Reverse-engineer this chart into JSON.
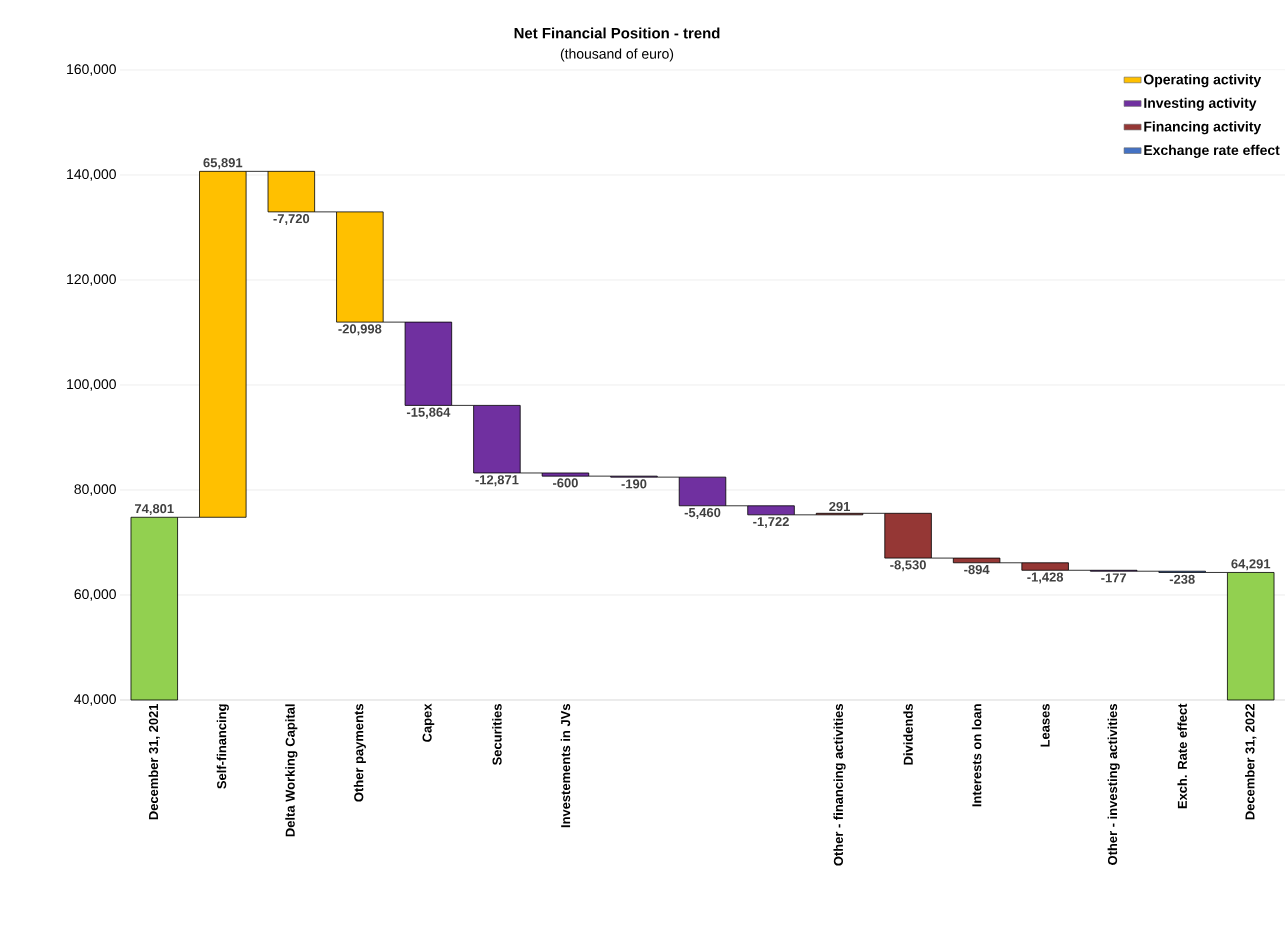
{
  "chart_data": {
    "type": "bar",
    "title": "Net Financial Position - trend",
    "subtitle": "(thousand of euro)",
    "categories": [
      "December 31, 2021",
      "Self-financing",
      "Delta Working Capital",
      "Other payments",
      "Capex",
      "Securities",
      "Investements in JVs",
      null,
      null,
      null,
      "Other - financing activities",
      "Dividends",
      "Interests on loan",
      "Leases",
      "Other - investing activities",
      "Exch. Rate effect",
      "December 31, 2022"
    ],
    "series": [
      {
        "color": "#92d050",
        "values": [
          34801,
          null,
          null,
          null,
          null,
          null,
          null,
          null,
          null,
          null,
          null,
          null,
          null,
          null,
          null,
          null,
          24291
        ],
        "base": [
          40000,
          null,
          null,
          null,
          null,
          null,
          null,
          null,
          null,
          null,
          null,
          null,
          null,
          null,
          null,
          null,
          40000
        ]
      },
      {
        "name": "Operating activity",
        "color": "#ffc000",
        "values": [
          null,
          65891,
          -7720,
          -20998,
          null,
          null,
          null,
          null,
          null,
          null,
          null,
          null,
          null,
          null,
          null,
          null,
          null
        ],
        "base": [
          null,
          74801,
          140692,
          132972,
          null,
          null,
          null,
          null,
          null,
          null,
          null,
          null,
          null,
          null,
          null,
          null,
          null
        ]
      },
      {
        "name": "Investing activity",
        "color": "#7030a0",
        "values": [
          null,
          null,
          null,
          null,
          -15864,
          -12871,
          -600,
          -190,
          -5460,
          -1722,
          null,
          null,
          null,
          null,
          -177,
          null,
          null
        ],
        "base": [
          null,
          null,
          null,
          null,
          111974,
          96110,
          83239,
          82639,
          82449,
          76989,
          null,
          null,
          null,
          null,
          64706,
          null,
          null
        ]
      },
      {
        "name": "Financing activity",
        "color": "#953735",
        "values": [
          null,
          null,
          null,
          null,
          null,
          null,
          null,
          null,
          null,
          null,
          291,
          -8530,
          -894,
          -1428,
          null,
          null,
          null
        ],
        "base": [
          null,
          null,
          null,
          null,
          null,
          null,
          null,
          null,
          null,
          null,
          75267,
          75558,
          67028,
          66134,
          null,
          null,
          null
        ]
      },
      {
        "name": "Exchange rate effect",
        "color": "#4472c4",
        "values": [
          null,
          null,
          null,
          null,
          null,
          null,
          null,
          null,
          null,
          null,
          null,
          null,
          null,
          null,
          null,
          -238,
          null
        ],
        "base": [
          null,
          null,
          null,
          null,
          null,
          null,
          null,
          null,
          null,
          null,
          null,
          null,
          null,
          null,
          null,
          64529,
          null
        ]
      }
    ],
    "value_labels": [
      "74,801",
      "65,891",
      "-7,720",
      "-20,998",
      "-15,864",
      "-12,871",
      "-600",
      "-190",
      "-5,460",
      "-1,722",
      "291",
      "-8,530",
      "-894",
      "-1,428",
      "-177",
      "-238",
      "64,291"
    ],
    "ylim": [
      40000,
      160000
    ],
    "yticks": [
      {
        "value": 40000,
        "label": "40,000"
      },
      {
        "value": 60000,
        "label": "60,000"
      },
      {
        "value": 80000,
        "label": "80,000"
      },
      {
        "value": 100000,
        "label": "100,000"
      },
      {
        "value": 120000,
        "label": "120,000"
      },
      {
        "value": 140000,
        "label": "140,000"
      },
      {
        "value": 160000,
        "label": "160,000"
      }
    ],
    "grid": "y",
    "legend": "top right"
  }
}
